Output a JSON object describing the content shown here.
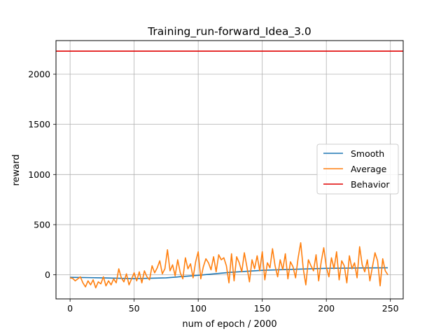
{
  "chart_data": {
    "type": "line",
    "title": "Training_run-forward_Idea_3.0",
    "xlabel": "num of epoch / 2000",
    "ylabel": "reward",
    "xlim": [
      -11,
      260
    ],
    "ylim": [
      -240,
      2335
    ],
    "xticks": [
      0,
      50,
      100,
      150,
      200,
      250
    ],
    "yticks": [
      0,
      500,
      1000,
      1500,
      2000
    ],
    "grid": true,
    "legend_position": "center-right",
    "legend": [
      "Smooth",
      "Average",
      "Behavior"
    ],
    "colors": {
      "Smooth": "#1f77b4",
      "Average": "#ff7f0e",
      "Behavior": "#e00000"
    },
    "behavior_value": 2230,
    "series": [
      {
        "name": "Smooth",
        "x": [
          0,
          25,
          50,
          75,
          100,
          125,
          150,
          175,
          200,
          225,
          248
        ],
        "values": [
          -25,
          -30,
          -38,
          -30,
          -5,
          25,
          45,
          55,
          65,
          68,
          70
        ]
      },
      {
        "name": "Average",
        "x": [
          0,
          2,
          4,
          6,
          8,
          10,
          12,
          14,
          16,
          18,
          20,
          22,
          24,
          26,
          28,
          30,
          32,
          34,
          36,
          38,
          40,
          42,
          44,
          46,
          48,
          50,
          52,
          54,
          56,
          58,
          60,
          62,
          64,
          66,
          68,
          70,
          72,
          74,
          76,
          78,
          80,
          82,
          84,
          86,
          88,
          90,
          92,
          94,
          96,
          98,
          100,
          102,
          104,
          106,
          108,
          110,
          112,
          114,
          116,
          118,
          120,
          122,
          124,
          126,
          128,
          130,
          132,
          134,
          136,
          138,
          140,
          142,
          144,
          146,
          148,
          150,
          152,
          154,
          156,
          158,
          160,
          162,
          164,
          166,
          168,
          170,
          172,
          174,
          176,
          178,
          180,
          182,
          184,
          186,
          188,
          190,
          192,
          194,
          196,
          198,
          200,
          202,
          204,
          206,
          208,
          210,
          212,
          214,
          216,
          218,
          220,
          222,
          224,
          226,
          228,
          230,
          232,
          234,
          236,
          238,
          240,
          242,
          244,
          246,
          248
        ],
        "values": [
          -30,
          -35,
          -60,
          -40,
          -20,
          -80,
          -120,
          -60,
          -100,
          -50,
          -130,
          -70,
          -90,
          -20,
          -110,
          -60,
          -100,
          -40,
          -80,
          60,
          -30,
          -70,
          10,
          -100,
          -40,
          20,
          -60,
          30,
          -80,
          40,
          -20,
          -50,
          90,
          20,
          70,
          140,
          10,
          60,
          250,
          40,
          100,
          -10,
          150,
          20,
          -40,
          170,
          60,
          110,
          -30,
          130,
          230,
          -40,
          80,
          160,
          120,
          50,
          180,
          30,
          200,
          150,
          170,
          90,
          -80,
          210,
          -60,
          180,
          120,
          30,
          220,
          80,
          -70,
          150,
          60,
          190,
          40,
          230,
          -50,
          120,
          70,
          260,
          90,
          -20,
          150,
          50,
          210,
          -40,
          130,
          80,
          -30,
          170,
          320,
          60,
          -100,
          150,
          90,
          40,
          200,
          -60,
          130,
          270,
          80,
          -20,
          170,
          60,
          230,
          -50,
          140,
          90,
          -80,
          190,
          60,
          120,
          -30,
          280,
          100,
          30,
          150,
          -60,
          80,
          220,
          140,
          -110,
          160,
          40,
          0
        ]
      },
      {
        "name": "Behavior",
        "x": [
          -11,
          260
        ],
        "values": [
          2230,
          2230
        ]
      }
    ]
  }
}
